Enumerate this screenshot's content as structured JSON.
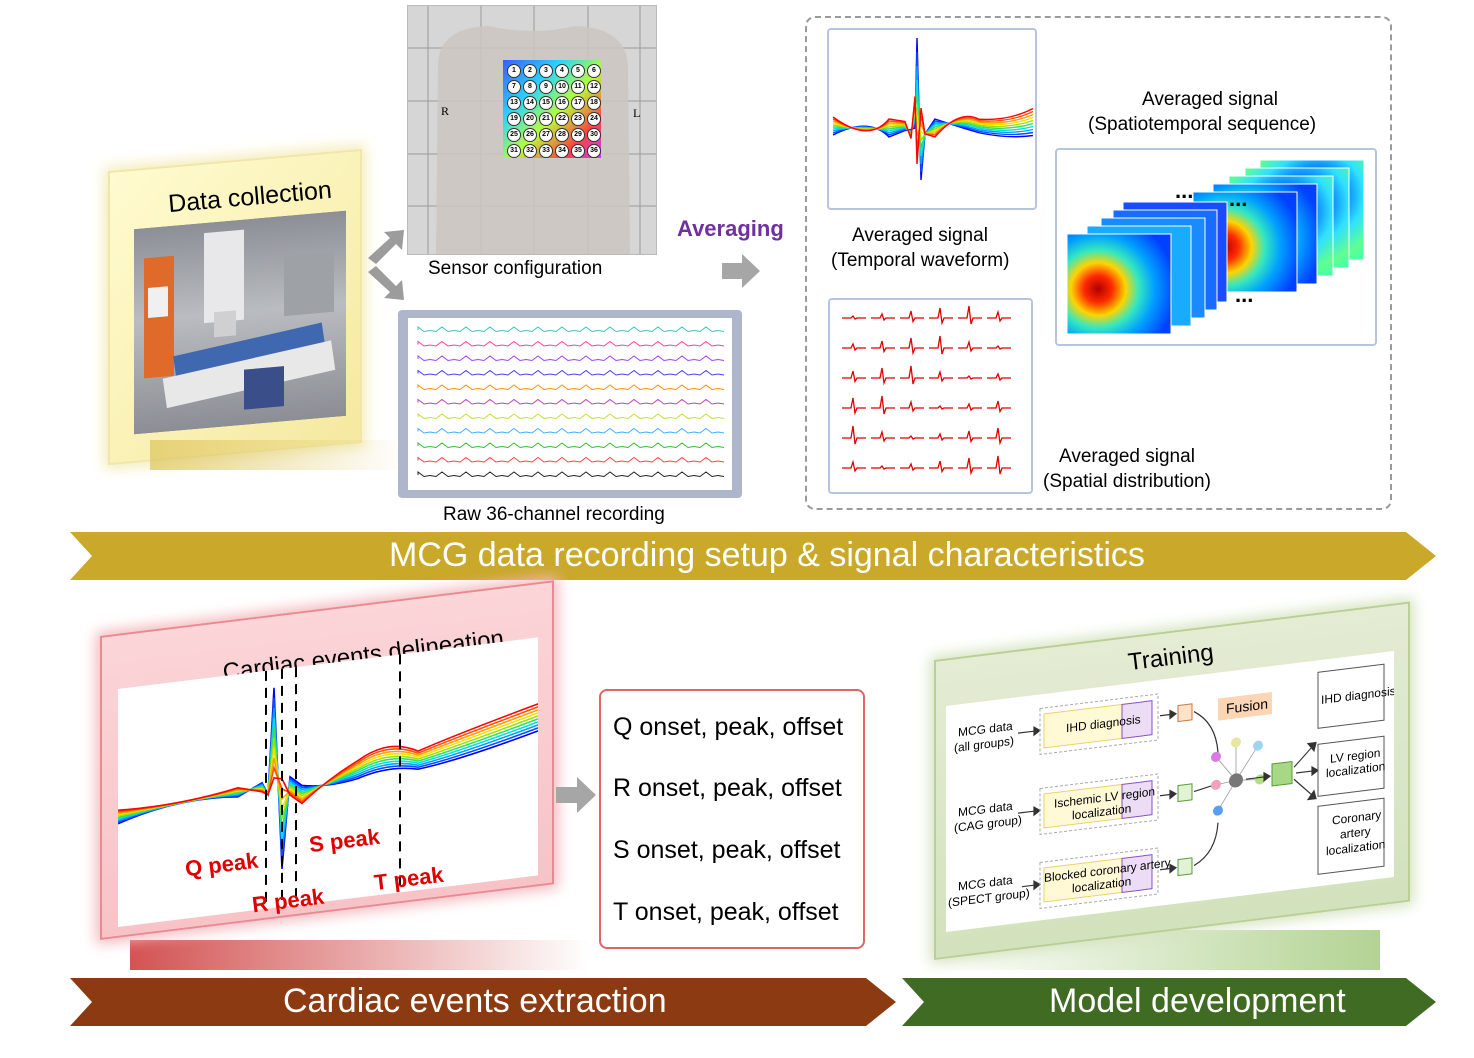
{
  "top": {
    "data_collection_title": "Data collection",
    "sensor_configuration_label": "Sensor configuration",
    "torso_left_marker": "R",
    "torso_right_marker": "L",
    "sensor_numbers": [
      "1",
      "2",
      "3",
      "4",
      "5",
      "6",
      "7",
      "8",
      "9",
      "10",
      "11",
      "12",
      "13",
      "14",
      "15",
      "16",
      "17",
      "18",
      "19",
      "20",
      "21",
      "22",
      "23",
      "24",
      "25",
      "26",
      "27",
      "28",
      "29",
      "30",
      "31",
      "32",
      "33",
      "34",
      "35",
      "36"
    ],
    "raw_recording_label": "Raw 36-channel recording",
    "averaging_label": "Averaging",
    "temporal_label_line1": "Averaged signal",
    "temporal_label_line2": "(Temporal waveform)",
    "spatial_label_line1": "Averaged signal",
    "spatial_label_line2": "(Spatial distribution)",
    "spatiotemporal_label_line1": "Averaged signal",
    "spatiotemporal_label_line2": "(Spatiotemporal sequence)",
    "banner": "MCG data recording setup & signal characteristics"
  },
  "events": {
    "panel_title": "Cardiac events delineation",
    "q_peak": "Q peak",
    "r_peak": "R peak",
    "s_peak": "S peak",
    "t_peak": "T peak",
    "list": [
      "Q onset, peak, offset",
      "R onset, peak, offset",
      "S onset, peak, offset",
      "T onset, peak, offset"
    ],
    "banner": "Cardiac events extraction"
  },
  "model": {
    "panel_title": "Training",
    "input1_line1": "MCG data",
    "input1_line2": "(all groups)",
    "input2_line1": "MCG data",
    "input2_line2": "(CAG group)",
    "input3_line1": "MCG data",
    "input3_line2": "(SPECT group)",
    "task1": "IHD diagnosis",
    "task2_line1": "Ischemic LV region",
    "task2_line2": "localization",
    "task3_line1": "Blocked coronary artery",
    "task3_line2": "localization",
    "fusion": "Fusion",
    "out1": "IHD diagnosis",
    "out2_line1": "LV region",
    "out2_line2": "localization",
    "out3_line1": "Coronary",
    "out3_line2": "artery",
    "out3_line3": "localization",
    "banner": "Model development"
  },
  "colors": {
    "banner_gold": "#c9a82a",
    "banner_brown": "#8b3a12",
    "banner_green": "#3f6b22",
    "averaging_purple": "#7030a0",
    "peak_red": "#e00000"
  }
}
